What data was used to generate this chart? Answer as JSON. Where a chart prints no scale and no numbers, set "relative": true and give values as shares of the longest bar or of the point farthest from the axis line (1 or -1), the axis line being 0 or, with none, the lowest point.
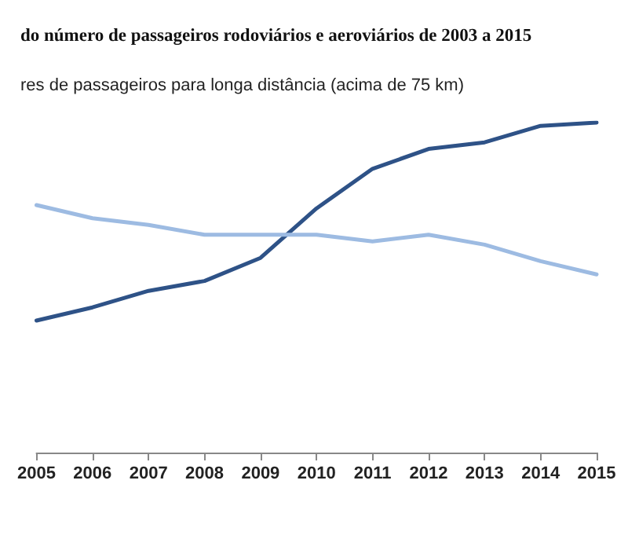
{
  "chart_data": {
    "type": "line",
    "title": "do número de passageiros rodoviários e aeroviários de 2003 a 2015",
    "subtitle": "res de passageiros para longa distância (acima de 75 km)",
    "relative": true,
    "categories": [
      "2005",
      "2006",
      "2007",
      "2008",
      "2009",
      "2010",
      "2011",
      "2012",
      "2013",
      "2014",
      "2015"
    ],
    "series": [
      {
        "color": "#2e5287",
        "values": [
          0.4,
          0.44,
          0.49,
          0.52,
          0.59,
          0.74,
          0.86,
          0.92,
          0.94,
          0.99,
          1.0
        ]
      },
      {
        "color": "#9dbbe2",
        "values": [
          0.75,
          0.71,
          0.69,
          0.66,
          0.66,
          0.66,
          0.64,
          0.66,
          0.63,
          0.58,
          0.54
        ]
      }
    ],
    "grid": false,
    "marker": "none",
    "line_style": "solid"
  }
}
